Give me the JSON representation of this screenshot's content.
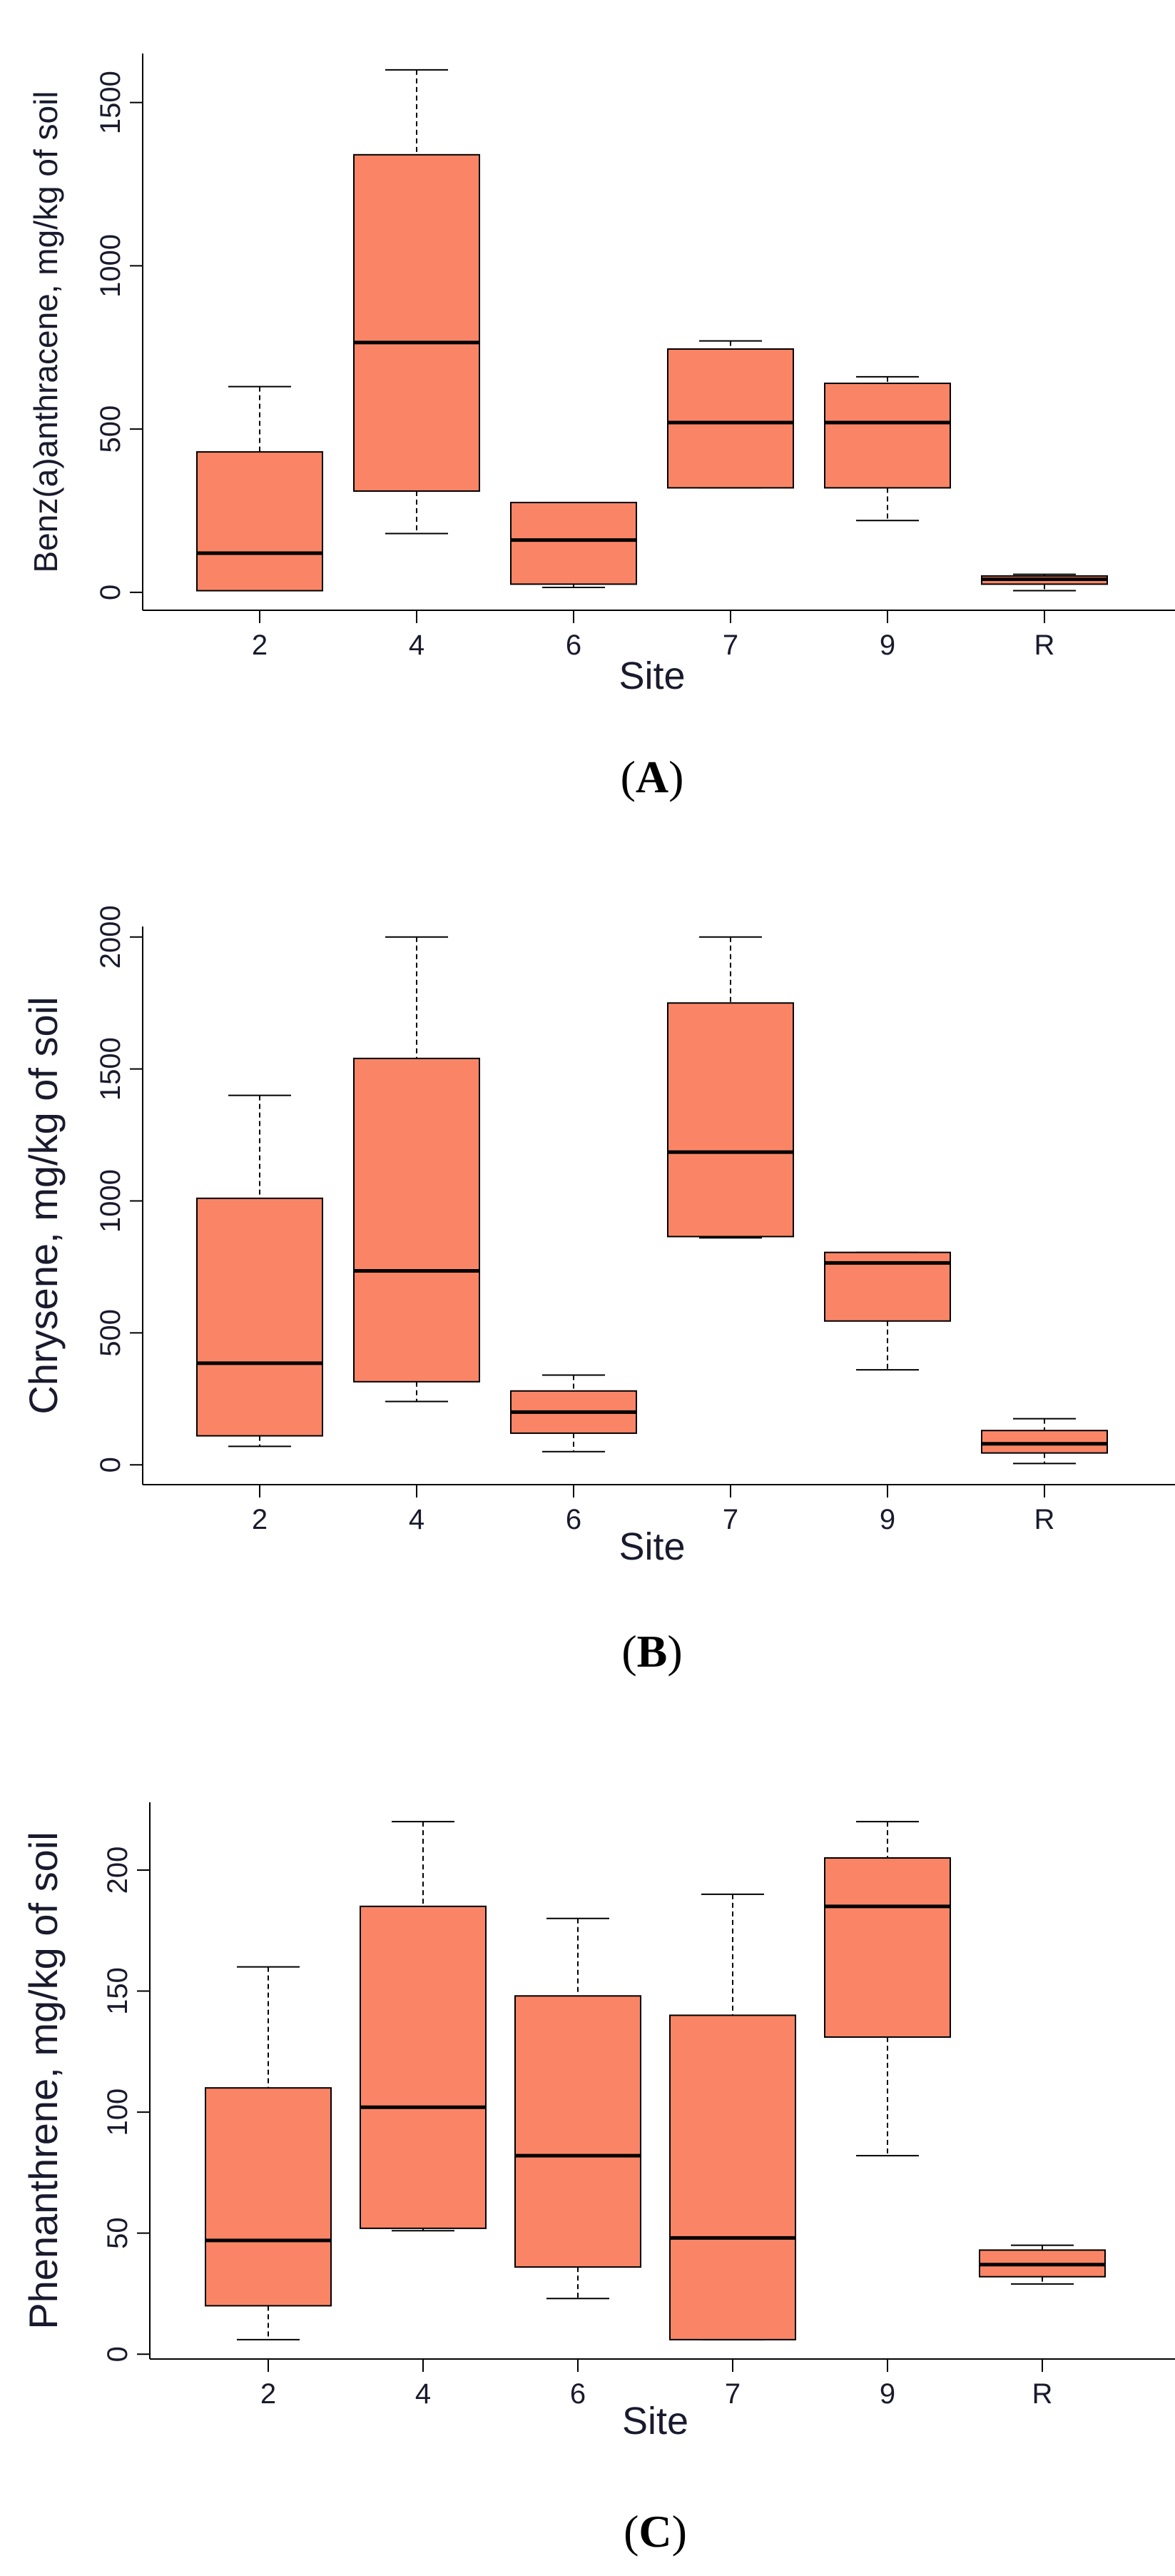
{
  "colors": {
    "box_fill": "#FA8566",
    "line": "#000000",
    "text": "#1a1a2e"
  },
  "chart_data": [
    {
      "type": "boxplot",
      "panel_label_open": "(",
      "panel_label_letter": "A",
      "panel_label_close": ")",
      "xlabel": "Site",
      "ylabel": "Benz(a)anthracene, mg/kg of soil",
      "ylim": [
        -55,
        1650
      ],
      "yticks": [
        0,
        500,
        1000,
        1500
      ],
      "ytick_labels": [
        "0",
        "500",
        "1000",
        "1500"
      ],
      "categories": [
        "2",
        "4",
        "6",
        "7",
        "9",
        "R"
      ],
      "boxes": [
        {
          "whisker_low": 5,
          "q1": 5,
          "median": 120,
          "q3": 430,
          "whisker_high": 630
        },
        {
          "whisker_low": 180,
          "q1": 310,
          "median": 765,
          "q3": 1340,
          "whisker_high": 1600
        },
        {
          "whisker_low": 15,
          "q1": 25,
          "median": 160,
          "q3": 275,
          "whisker_high": 275
        },
        {
          "whisker_low": 320,
          "q1": 320,
          "median": 520,
          "q3": 745,
          "whisker_high": 770
        },
        {
          "whisker_low": 220,
          "q1": 320,
          "median": 520,
          "q3": 640,
          "whisker_high": 660
        },
        {
          "whisker_low": 5,
          "q1": 25,
          "median": 40,
          "q3": 50,
          "whisker_high": 55
        }
      ]
    },
    {
      "type": "boxplot",
      "panel_label_open": "(",
      "panel_label_letter": "B",
      "panel_label_close": ")",
      "xlabel": "Site",
      "ylabel": "Chrysene, mg/kg of soil",
      "ylim": [
        -75,
        2040
      ],
      "yticks": [
        0,
        500,
        1000,
        1500,
        2000
      ],
      "ytick_labels": [
        "0",
        "500",
        "1000",
        "1500",
        "2000"
      ],
      "categories": [
        "2",
        "4",
        "6",
        "7",
        "9",
        "R"
      ],
      "boxes": [
        {
          "whisker_low": 70,
          "q1": 110,
          "median": 385,
          "q3": 1010,
          "whisker_high": 1400
        },
        {
          "whisker_low": 240,
          "q1": 315,
          "median": 735,
          "q3": 1540,
          "whisker_high": 2000
        },
        {
          "whisker_low": 50,
          "q1": 120,
          "median": 200,
          "q3": 280,
          "whisker_high": 340
        },
        {
          "whisker_low": 860,
          "q1": 865,
          "median": 1185,
          "q3": 1750,
          "whisker_high": 2000
        },
        {
          "whisker_low": 360,
          "q1": 545,
          "median": 765,
          "q3": 805,
          "whisker_high": 805
        },
        {
          "whisker_low": 5,
          "q1": 45,
          "median": 80,
          "q3": 130,
          "whisker_high": 175
        }
      ]
    },
    {
      "type": "boxplot",
      "panel_label_open": "(",
      "panel_label_letter": "C",
      "panel_label_close": ")",
      "xlabel": "Site",
      "ylabel": "Phenanthrene, mg/kg of soil",
      "ylim": [
        -2,
        228
      ],
      "yticks": [
        0,
        50,
        100,
        150,
        200
      ],
      "ytick_labels": [
        "0",
        "50",
        "100",
        "150",
        "200"
      ],
      "categories": [
        "2",
        "4",
        "6",
        "7",
        "9",
        "R"
      ],
      "boxes": [
        {
          "whisker_low": 6,
          "q1": 20,
          "median": 47,
          "q3": 110,
          "whisker_high": 160
        },
        {
          "whisker_low": 51,
          "q1": 52,
          "median": 102,
          "q3": 185,
          "whisker_high": 220
        },
        {
          "whisker_low": 23,
          "q1": 36,
          "median": 82,
          "q3": 148,
          "whisker_high": 180
        },
        {
          "whisker_low": 6,
          "q1": 6,
          "median": 48,
          "q3": 140,
          "whisker_high": 190
        },
        {
          "whisker_low": 82,
          "q1": 131,
          "median": 185,
          "q3": 205,
          "whisker_high": 220
        },
        {
          "whisker_low": 29,
          "q1": 32,
          "median": 37,
          "q3": 43,
          "whisker_high": 45
        }
      ]
    }
  ]
}
